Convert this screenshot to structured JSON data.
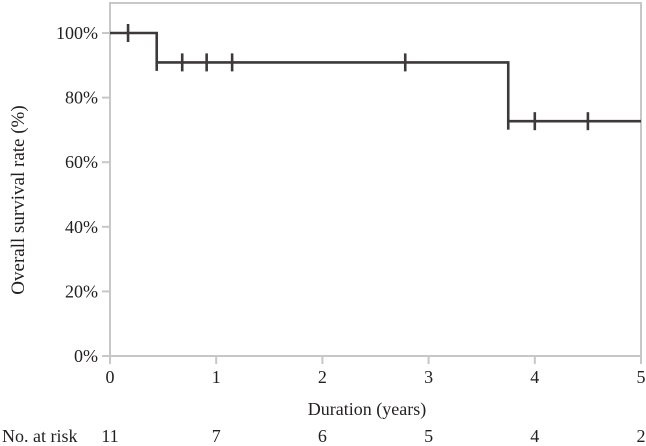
{
  "chart_data": {
    "type": "line",
    "subtype": "kaplan-meier-step",
    "title": "",
    "xlabel": "Duration (years)",
    "ylabel": "Overall survival rate (%)",
    "xlim": [
      0,
      5
    ],
    "ylim": [
      0,
      100
    ],
    "x_ticks": [
      0,
      1,
      2,
      3,
      4,
      5
    ],
    "x_tick_labels": [
      "0",
      "1",
      "2",
      "3",
      "4",
      "5"
    ],
    "y_tick_values": [
      0,
      20,
      40,
      60,
      80,
      100
    ],
    "y_tick_labels": [
      "0%",
      "20%",
      "40%",
      "60%",
      "80%",
      "100%"
    ],
    "grid": false,
    "legend": false,
    "frame": "full-box",
    "colors": {
      "curve": "#3d383a",
      "frame": "#c8c6c6",
      "text": "#231f20",
      "background": "#ffffff"
    },
    "series": [
      {
        "name": "Overall survival",
        "steps": [
          {
            "x_start": 0.0,
            "x_end": 0.44,
            "y": 100.0
          },
          {
            "x_start": 0.44,
            "x_end": 3.75,
            "y": 90.9
          },
          {
            "x_start": 3.75,
            "x_end": 5.0,
            "y": 72.7
          }
        ],
        "events": [
          {
            "x": 0.44,
            "from": 100.0,
            "to": 90.9
          },
          {
            "x": 3.75,
            "from": 90.9,
            "to": 72.7
          }
        ],
        "censor_marks": [
          {
            "x": 0.17,
            "y": 100.0
          },
          {
            "x": 0.68,
            "y": 90.9
          },
          {
            "x": 0.91,
            "y": 90.9
          },
          {
            "x": 1.15,
            "y": 90.9
          },
          {
            "x": 2.78,
            "y": 90.9
          },
          {
            "x": 4.0,
            "y": 72.7
          },
          {
            "x": 4.5,
            "y": 72.7
          }
        ]
      }
    ],
    "risk_table": {
      "label": "No. at risk",
      "times": [
        0,
        1,
        2,
        3,
        4,
        5
      ],
      "counts": [
        "11",
        "7",
        "6",
        "5",
        "4",
        "2"
      ]
    }
  }
}
